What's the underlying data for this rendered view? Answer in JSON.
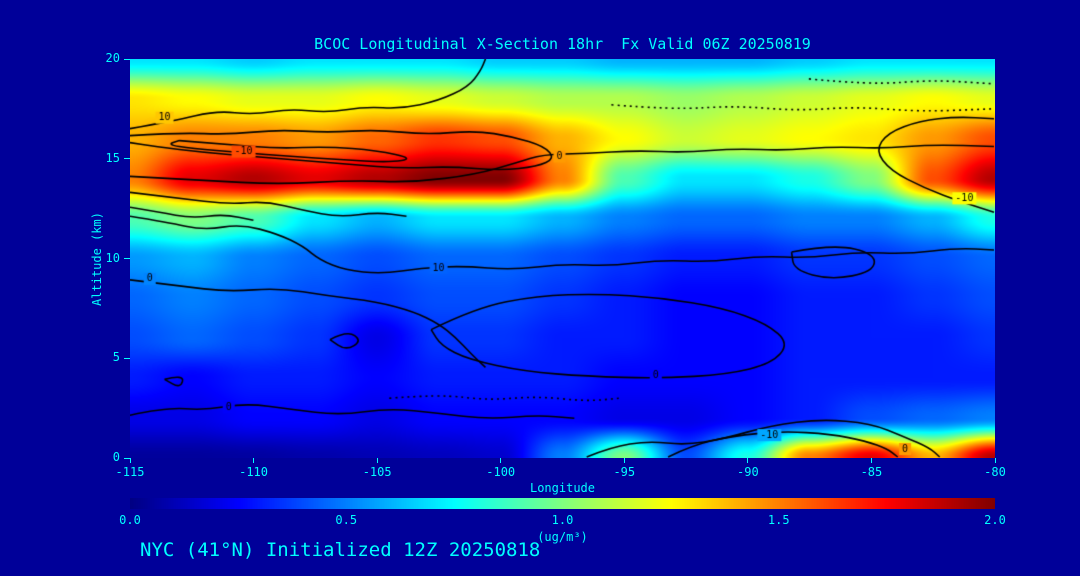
{
  "title": "BCOC Longitudinal X-Section 18hr  Fx Valid 06Z 20250819",
  "footer": "NYC (41°N) Initialized 12Z 20250818",
  "colors": {
    "background": "#000099",
    "text": "#00FFFF",
    "contour": "#000000"
  },
  "chart_data": {
    "type": "heatmap",
    "title": "BCOC Longitudinal X-Section 18hr  Fx Valid 06Z 20250819",
    "xlabel": "Longitude",
    "ylabel": "Altitude (km)",
    "colorbar_label": "(ug/m³)",
    "xlim": [
      -115,
      -80
    ],
    "ylim": [
      0,
      20
    ],
    "x_tick_labels": [
      "-115",
      "-110",
      "-105",
      "-100",
      "-95",
      "-90",
      "-85",
      "-80"
    ],
    "y_tick_labels": [
      "0",
      "5",
      "10",
      "15",
      "20"
    ],
    "colorbar_tick_labels": [
      "0.0",
      "0.5",
      "1.0",
      "1.5",
      "2.0"
    ],
    "colorbar_range": [
      0,
      2
    ],
    "colormap": [
      {
        "t": 0.0,
        "rgb": [
          0,
          0,
          131
        ]
      },
      {
        "t": 0.125,
        "rgb": [
          0,
          0,
          255
        ]
      },
      {
        "t": 0.375,
        "rgb": [
          0,
          255,
          255
        ]
      },
      {
        "t": 0.625,
        "rgb": [
          255,
          255,
          0
        ]
      },
      {
        "t": 0.875,
        "rgb": [
          255,
          0,
          0
        ]
      },
      {
        "t": 1.0,
        "rgb": [
          128,
          0,
          0
        ]
      }
    ],
    "grid": {
      "lon": [
        -115,
        -112.5,
        -110,
        -107.5,
        -105,
        -102.5,
        -100,
        -97.5,
        -95,
        -92.5,
        -90,
        -87.5,
        -85,
        -82.5,
        -80
      ],
      "alt": [
        0,
        2,
        4,
        6,
        8,
        10,
        12,
        14,
        16,
        18,
        20
      ],
      "values": [
        [
          0.05,
          0.05,
          0.06,
          0.08,
          0.1,
          0.12,
          0.15,
          0.5,
          1.0,
          0.4,
          0.8,
          1.5,
          1.8,
          1.4,
          1.9
        ],
        [
          0.2,
          0.2,
          0.25,
          0.25,
          0.2,
          0.25,
          0.25,
          0.25,
          0.2,
          0.2,
          0.25,
          0.3,
          0.4,
          0.45,
          0.5
        ],
        [
          0.3,
          0.25,
          0.3,
          0.3,
          0.25,
          0.3,
          0.3,
          0.3,
          0.25,
          0.25,
          0.25,
          0.3,
          0.3,
          0.3,
          0.3
        ],
        [
          0.4,
          0.45,
          0.4,
          0.35,
          0.2,
          0.35,
          0.35,
          0.3,
          0.3,
          0.25,
          0.25,
          0.3,
          0.3,
          0.3,
          0.35
        ],
        [
          0.45,
          0.5,
          0.45,
          0.4,
          0.35,
          0.4,
          0.4,
          0.35,
          0.3,
          0.25,
          0.25,
          0.3,
          0.3,
          0.35,
          0.4
        ],
        [
          0.55,
          0.6,
          0.5,
          0.45,
          0.4,
          0.45,
          0.45,
          0.4,
          0.35,
          0.3,
          0.3,
          0.35,
          0.35,
          0.4,
          0.45
        ],
        [
          0.9,
          1.0,
          0.9,
          0.7,
          0.6,
          0.7,
          0.7,
          0.6,
          0.5,
          0.45,
          0.45,
          0.5,
          0.5,
          0.6,
          0.8
        ],
        [
          1.5,
          1.8,
          1.9,
          1.8,
          1.9,
          2.0,
          2.0,
          1.5,
          0.9,
          0.7,
          0.7,
          0.8,
          1.0,
          1.6,
          1.9
        ],
        [
          1.4,
          1.5,
          1.5,
          1.45,
          1.55,
          1.65,
          1.6,
          1.4,
          1.25,
          1.15,
          1.2,
          1.25,
          1.3,
          1.45,
          1.6
        ],
        [
          1.3,
          1.25,
          1.2,
          1.2,
          1.25,
          1.2,
          1.15,
          1.1,
          1.1,
          1.05,
          1.1,
          1.15,
          1.2,
          1.25,
          1.2
        ],
        [
          0.7,
          0.7,
          0.65,
          0.7,
          0.7,
          0.7,
          0.65,
          0.65,
          0.6,
          0.6,
          0.6,
          0.65,
          0.7,
          0.7,
          0.7
        ]
      ]
    },
    "contours": [
      {
        "label": "10",
        "label_pos": [
          -113.6,
          17.05
        ],
        "dashed": false,
        "points": [
          [
            -115,
            16.5
          ],
          [
            -113.2,
            16.9
          ],
          [
            -111.5,
            17.4
          ],
          [
            -110,
            17.2
          ],
          [
            -108.5,
            17.5
          ],
          [
            -107,
            17.3
          ],
          [
            -105.5,
            17.6
          ],
          [
            -104,
            17.5
          ],
          [
            -102.5,
            17.9
          ],
          [
            -101.3,
            18.6
          ],
          [
            -100.8,
            19.4
          ],
          [
            -100.6,
            20
          ]
        ]
      },
      {
        "label": "-10",
        "label_pos": [
          -110.4,
          15.35
        ],
        "dashed": false,
        "points": [
          [
            -115,
            16.15
          ],
          [
            -113,
            16.3
          ],
          [
            -111,
            16.2
          ],
          [
            -109,
            16.45
          ],
          [
            -107,
            16.3
          ],
          [
            -105,
            16.45
          ],
          [
            -103,
            16.2
          ],
          [
            -101,
            16.4
          ],
          [
            -99.5,
            16.1
          ],
          [
            -98.2,
            15.6
          ],
          [
            -97.8,
            15.0
          ],
          [
            -98.5,
            14.6
          ],
          [
            -100,
            14.4
          ],
          [
            -102,
            14.6
          ],
          [
            -104,
            14.5
          ],
          [
            -106,
            14.7
          ],
          [
            -108,
            14.9
          ],
          [
            -110,
            15.1
          ],
          [
            -112,
            15.3
          ],
          [
            -114,
            15.6
          ],
          [
            -115,
            15.8
          ]
        ]
      },
      {
        "label": "",
        "label_pos": null,
        "dashed": false,
        "points": [
          [
            -113,
            15.9
          ],
          [
            -111,
            15.7
          ],
          [
            -109,
            15.5
          ],
          [
            -107,
            15.6
          ],
          [
            -105,
            15.4
          ],
          [
            -103.5,
            15.0
          ],
          [
            -104.5,
            14.8
          ],
          [
            -106.5,
            14.95
          ],
          [
            -108.5,
            15.1
          ],
          [
            -110.5,
            15.3
          ],
          [
            -112.5,
            15.5
          ],
          [
            -113.5,
            15.7
          ],
          [
            -113,
            15.9
          ]
        ]
      },
      {
        "label": "0",
        "label_pos": [
          -97.6,
          15.1
        ],
        "dashed": false,
        "points": [
          [
            -115,
            14.1
          ],
          [
            -112,
            13.9
          ],
          [
            -109,
            13.7
          ],
          [
            -106,
            13.9
          ],
          [
            -103.5,
            13.8
          ],
          [
            -101,
            14.2
          ],
          [
            -99.3,
            14.8
          ],
          [
            -98.3,
            15.2
          ],
          [
            -96.5,
            15.25
          ],
          [
            -94.5,
            15.4
          ],
          [
            -92.5,
            15.3
          ],
          [
            -90.5,
            15.5
          ],
          [
            -88.5,
            15.4
          ],
          [
            -86.5,
            15.6
          ],
          [
            -84.5,
            15.5
          ],
          [
            -82.5,
            15.7
          ],
          [
            -80,
            15.6
          ]
        ]
      },
      {
        "label": "-10",
        "label_pos": [
          -81.2,
          13.0
        ],
        "dashed": false,
        "points": [
          [
            -80,
            12.3
          ],
          [
            -81.3,
            12.8
          ],
          [
            -82.8,
            13.5
          ],
          [
            -84.2,
            14.4
          ],
          [
            -84.8,
            15.4
          ],
          [
            -84.3,
            16.3
          ],
          [
            -83,
            16.9
          ],
          [
            -81.5,
            17.1
          ],
          [
            -80,
            17.0
          ]
        ]
      },
      {
        "label": "10",
        "label_pos": [
          -102.5,
          9.5
        ],
        "dashed": false,
        "points": [
          [
            -115,
            12.1
          ],
          [
            -113.5,
            11.8
          ],
          [
            -112,
            11.4
          ],
          [
            -110.5,
            11.7
          ],
          [
            -109,
            11.2
          ],
          [
            -108,
            10.6
          ],
          [
            -107.3,
            9.9
          ],
          [
            -106.3,
            9.4
          ],
          [
            -104.8,
            9.2
          ],
          [
            -103.2,
            9.5
          ],
          [
            -101.5,
            9.6
          ],
          [
            -99.5,
            9.4
          ],
          [
            -97.5,
            9.7
          ],
          [
            -95.5,
            9.6
          ],
          [
            -93.5,
            9.9
          ],
          [
            -91.5,
            9.8
          ],
          [
            -89.5,
            10.1
          ],
          [
            -87.5,
            10.0
          ],
          [
            -85.5,
            10.3
          ],
          [
            -83.5,
            10.2
          ],
          [
            -81.5,
            10.5
          ],
          [
            -80,
            10.4
          ]
        ]
      },
      {
        "label": "0",
        "label_pos": [
          -114.2,
          8.95
        ],
        "dashed": false,
        "points": [
          [
            -115,
            8.9
          ],
          [
            -113,
            8.6
          ],
          [
            -111,
            8.3
          ],
          [
            -109,
            8.5
          ],
          [
            -107,
            8.1
          ],
          [
            -105,
            7.8
          ],
          [
            -103.5,
            7.3
          ],
          [
            -102.5,
            6.7
          ],
          [
            -101.8,
            6.0
          ],
          [
            -101.2,
            5.2
          ],
          [
            -100.6,
            4.5
          ]
        ]
      },
      {
        "label": "0",
        "label_pos": [
          -93.7,
          4.1
        ],
        "dashed": false,
        "points": [
          [
            -102.8,
            6.4
          ],
          [
            -101,
            7.5
          ],
          [
            -98.5,
            8.1
          ],
          [
            -96,
            8.2
          ],
          [
            -93.5,
            8.0
          ],
          [
            -91,
            7.5
          ],
          [
            -89.2,
            6.7
          ],
          [
            -88.3,
            5.7
          ],
          [
            -89,
            4.7
          ],
          [
            -90.8,
            4.15
          ],
          [
            -93.5,
            3.95
          ],
          [
            -96.5,
            4.05
          ],
          [
            -99,
            4.3
          ],
          [
            -101.3,
            4.9
          ],
          [
            -102.4,
            5.6
          ],
          [
            -102.8,
            6.4
          ]
        ]
      },
      {
        "label": "",
        "label_pos": null,
        "dashed": false,
        "points": [
          [
            -88.2,
            10.3
          ],
          [
            -86.5,
            10.7
          ],
          [
            -84.8,
            10.2
          ],
          [
            -84.9,
            9.3
          ],
          [
            -86.6,
            8.9
          ],
          [
            -88.1,
            9.4
          ],
          [
            -88.2,
            10.3
          ]
        ]
      },
      {
        "label": "0",
        "label_pos": [
          -111.0,
          2.5
        ],
        "dashed": false,
        "points": [
          [
            -115,
            2.1
          ],
          [
            -113.5,
            2.5
          ],
          [
            -112,
            2.35
          ],
          [
            -110.3,
            2.7
          ],
          [
            -108.5,
            2.4
          ],
          [
            -106.5,
            2.1
          ],
          [
            -104.5,
            2.45
          ],
          [
            -102.5,
            2.2
          ],
          [
            -100.5,
            1.9
          ],
          [
            -98.5,
            2.1
          ],
          [
            -97,
            1.95
          ]
        ]
      },
      {
        "label": "",
        "label_pos": null,
        "dashed": false,
        "points": [
          [
            -106.9,
            5.9
          ],
          [
            -106.2,
            6.35
          ],
          [
            -105.6,
            5.85
          ],
          [
            -106.25,
            5.35
          ],
          [
            -106.9,
            5.9
          ]
        ]
      },
      {
        "label": "",
        "label_pos": null,
        "dashed": false,
        "points": [
          [
            -113.6,
            3.9
          ],
          [
            -112.8,
            4.15
          ],
          [
            -112.95,
            3.45
          ],
          [
            -113.6,
            3.9
          ]
        ]
      },
      {
        "label": "-10",
        "label_pos": [
          -89.1,
          1.1
        ],
        "dashed": false,
        "points": [
          [
            -93.2,
            0
          ],
          [
            -92.2,
            0.6
          ],
          [
            -90.6,
            1.05
          ],
          [
            -88.6,
            1.3
          ],
          [
            -86.6,
            1.15
          ],
          [
            -85.2,
            0.8
          ],
          [
            -84.3,
            0.4
          ],
          [
            -83.9,
            0
          ]
        ]
      },
      {
        "label": "0",
        "label_pos": [
          -83.6,
          0.4
        ],
        "dashed": false,
        "points": [
          [
            -96.5,
            0
          ],
          [
            -95.5,
            0.5
          ],
          [
            -94,
            0.8
          ],
          [
            -92.5,
            0.6
          ],
          [
            -91,
            0.9
          ],
          [
            -89,
            1.6
          ],
          [
            -87,
            1.9
          ],
          [
            -85,
            1.7
          ],
          [
            -83.6,
            1.0
          ],
          [
            -82.6,
            0.45
          ],
          [
            -82.2,
            0
          ]
        ]
      },
      {
        "label": "",
        "label_pos": null,
        "dashed": true,
        "points": [
          [
            -95.5,
            17.7
          ],
          [
            -93,
            17.45
          ],
          [
            -90.5,
            17.65
          ],
          [
            -88,
            17.4
          ],
          [
            -85.5,
            17.6
          ],
          [
            -83,
            17.35
          ],
          [
            -80,
            17.5
          ]
        ]
      },
      {
        "label": "",
        "label_pos": null,
        "dashed": true,
        "points": [
          [
            -87.5,
            19.0
          ],
          [
            -85,
            18.7
          ],
          [
            -82.5,
            18.95
          ],
          [
            -80,
            18.75
          ]
        ]
      },
      {
        "label": "",
        "label_pos": null,
        "dashed": true,
        "points": [
          [
            -104.5,
            2.95
          ],
          [
            -102.5,
            3.15
          ],
          [
            -100.5,
            2.85
          ],
          [
            -98.5,
            3.05
          ],
          [
            -96.5,
            2.8
          ],
          [
            -95.2,
            2.95
          ]
        ]
      },
      {
        "label": "",
        "label_pos": null,
        "dashed": false,
        "points": [
          [
            -115,
            13.3
          ],
          [
            -113,
            13.0
          ],
          [
            -111,
            12.7
          ],
          [
            -109.5,
            12.85
          ],
          [
            -108,
            12.4
          ],
          [
            -106.5,
            12.05
          ],
          [
            -105,
            12.3
          ],
          [
            -103.8,
            12.1
          ]
        ]
      },
      {
        "label": "",
        "label_pos": null,
        "dashed": false,
        "points": [
          [
            -115,
            12.55
          ],
          [
            -113.8,
            12.3
          ],
          [
            -112.5,
            12.0
          ],
          [
            -111.2,
            12.2
          ],
          [
            -110,
            11.9
          ]
        ]
      }
    ]
  }
}
